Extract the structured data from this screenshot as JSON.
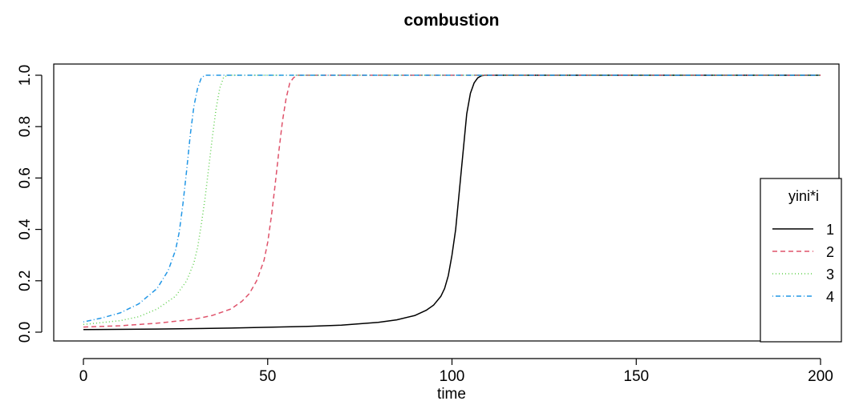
{
  "chart_data": {
    "type": "line",
    "title": "combustion",
    "xlabel": "time",
    "ylabel": "",
    "xlim": [
      0,
      200
    ],
    "ylim": [
      0.0,
      1.0
    ],
    "xticks": [
      0,
      50,
      100,
      150,
      200
    ],
    "xtick_labels": [
      "0",
      "50",
      "100",
      "150",
      "200"
    ],
    "yticks": [
      0.0,
      0.2,
      0.4,
      0.6,
      0.8,
      1.0
    ],
    "ytick_labels": [
      "0.0",
      "0.2",
      "0.4",
      "0.6",
      "0.8",
      "1.0"
    ],
    "grid": false,
    "legend": {
      "title": "yini*i",
      "position": "right",
      "entries": [
        "1",
        "2",
        "3",
        "4"
      ]
    },
    "series": [
      {
        "name": "1",
        "color": "#000000",
        "dash": "solid",
        "x": [
          0,
          20,
          40,
          60,
          70,
          80,
          85,
          90,
          93,
          95,
          97,
          98,
          99,
          100,
          101,
          102,
          103,
          104,
          105,
          106,
          107,
          108,
          109,
          110,
          112,
          120,
          150,
          200
        ],
        "y": [
          0.01,
          0.012,
          0.016,
          0.022,
          0.027,
          0.038,
          0.048,
          0.065,
          0.085,
          0.105,
          0.14,
          0.17,
          0.22,
          0.3,
          0.4,
          0.55,
          0.7,
          0.85,
          0.93,
          0.97,
          0.99,
          0.998,
          1.0,
          1.0,
          1.0,
          1.0,
          1.0,
          1.0
        ]
      },
      {
        "name": "2",
        "color": "#DF536B",
        "dash": "dashed",
        "x": [
          0,
          10,
          20,
          30,
          35,
          40,
          43,
          45,
          47,
          49,
          50,
          51,
          52,
          53,
          54,
          55,
          56,
          57,
          58,
          60,
          65,
          80,
          100,
          150,
          200
        ],
        "y": [
          0.02,
          0.025,
          0.035,
          0.05,
          0.065,
          0.09,
          0.12,
          0.15,
          0.2,
          0.28,
          0.35,
          0.45,
          0.57,
          0.7,
          0.82,
          0.91,
          0.97,
          0.99,
          1.0,
          1.0,
          1.0,
          1.0,
          1.0,
          1.0,
          1.0
        ]
      },
      {
        "name": "3",
        "color": "#61D04F",
        "dash": "dotted",
        "x": [
          0,
          10,
          15,
          20,
          25,
          28,
          30,
          31,
          32,
          33,
          34,
          35,
          36,
          37,
          38,
          39,
          40,
          45,
          60,
          100,
          150,
          200
        ],
        "y": [
          0.03,
          0.045,
          0.06,
          0.09,
          0.14,
          0.2,
          0.27,
          0.33,
          0.42,
          0.52,
          0.64,
          0.76,
          0.87,
          0.95,
          0.99,
          1.0,
          1.0,
          1.0,
          1.0,
          1.0,
          1.0,
          1.0
        ]
      },
      {
        "name": "4",
        "color": "#2297E6",
        "dash": "dotdash",
        "x": [
          0,
          5,
          10,
          15,
          20,
          23,
          25,
          26,
          27,
          28,
          29,
          30,
          31,
          32,
          33,
          34,
          35,
          40,
          60,
          100,
          150,
          200
        ],
        "y": [
          0.04,
          0.055,
          0.075,
          0.11,
          0.17,
          0.24,
          0.32,
          0.39,
          0.5,
          0.63,
          0.77,
          0.88,
          0.95,
          0.99,
          1.0,
          1.0,
          1.0,
          1.0,
          1.0,
          1.0,
          1.0,
          1.0
        ]
      }
    ]
  }
}
